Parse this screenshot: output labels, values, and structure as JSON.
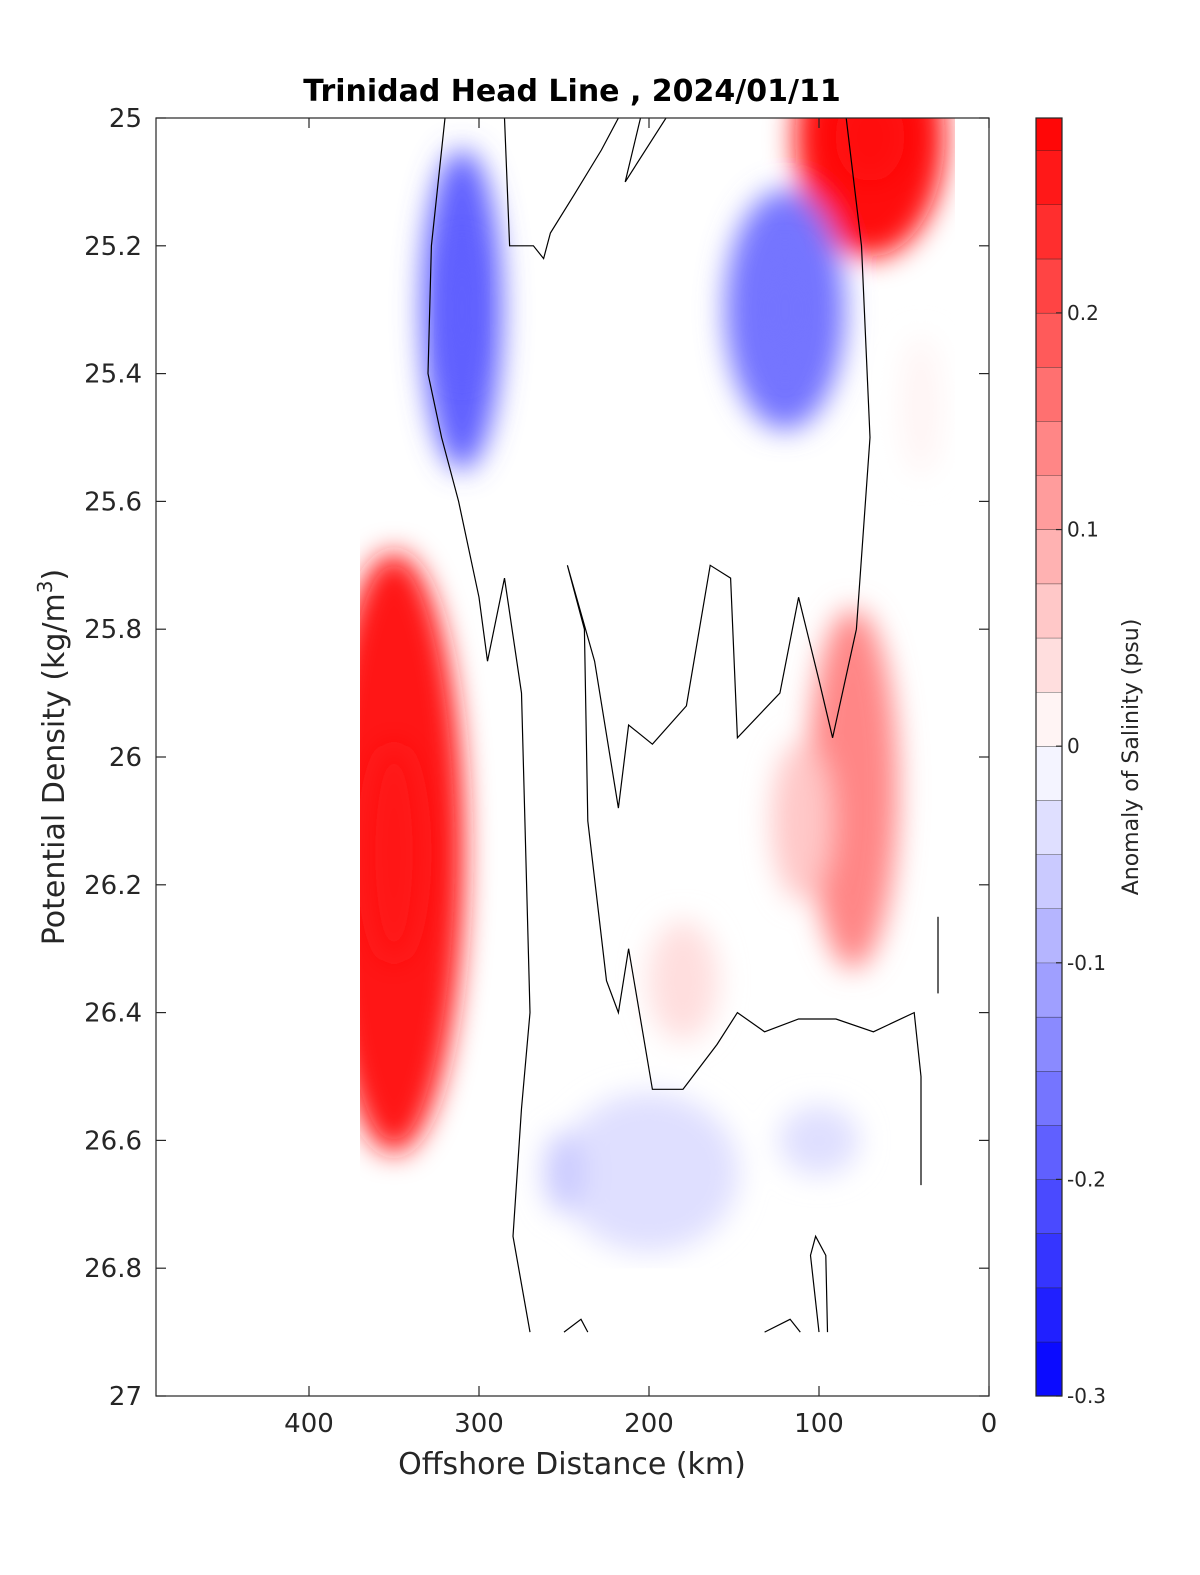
{
  "chart_data": {
    "type": "contour",
    "title": "Trinidad Head Line , 2024/01/11",
    "xlabel": "Offshore Distance (km)",
    "ylabel": "Potential Density (kg/m",
    "ylabel_superscript": "3",
    "ylabel_suffix": ")",
    "xlim": [
      490,
      0
    ],
    "ylim": [
      25,
      27
    ],
    "y_reversed": true,
    "x_reversed": true,
    "x_ticks": [
      400,
      300,
      200,
      100,
      0
    ],
    "x_tick_labels": [
      "400",
      "300",
      "200",
      "100",
      "0"
    ],
    "y_ticks": [
      25,
      25.2,
      25.4,
      25.6,
      25.8,
      26,
      26.2,
      26.4,
      26.6,
      26.8,
      27
    ],
    "y_tick_labels": [
      "25",
      "25.2",
      "25.4",
      "25.6",
      "25.8",
      "26",
      "26.2",
      "26.4",
      "26.6",
      "26.8",
      "27"
    ],
    "colorbar": {
      "label": "Anomaly of Salinity (psu)",
      "clim": [
        -0.3,
        0.29
      ],
      "levels": [
        -0.3,
        -0.275,
        -0.25,
        -0.225,
        -0.2,
        -0.175,
        -0.15,
        -0.125,
        -0.1,
        -0.075,
        -0.05,
        -0.025,
        0,
        0.025,
        0.05,
        0.075,
        0.1,
        0.125,
        0.15,
        0.175,
        0.2,
        0.225,
        0.25,
        0.275,
        0.29
      ],
      "ticks": [
        0.2,
        0.1,
        0,
        -0.1,
        -0.2,
        -0.3
      ],
      "tick_labels": [
        "0.2",
        "0.1",
        "0",
        "-0.1",
        "-0.2",
        "-0.3"
      ],
      "colormap": "blue-white-red",
      "color_negative": "#0000ff",
      "color_positive": "#ff0000"
    },
    "data_extent": {
      "x_range_km": [
        20,
        370
      ],
      "y_range_density": [
        25,
        26.9
      ]
    },
    "features": [
      {
        "name": "offshore positive core",
        "x_km": 350,
        "y": 26.15,
        "value": 0.25
      },
      {
        "name": "nearshore surface positive core",
        "x_km": 70,
        "y": 25.03,
        "value": 0.29
      },
      {
        "name": "offshore negative core",
        "x_km": 310,
        "y": 25.3,
        "value": -0.2
      },
      {
        "name": "midshelf negative core",
        "x_km": 120,
        "y": 25.3,
        "value": -0.175
      },
      {
        "name": "nearshore mid positive lobe",
        "x_km": 80,
        "y": 26.05,
        "value": 0.13
      },
      {
        "name": "inshore weak positive",
        "x_km": 40,
        "y": 25.45,
        "value": 0.0
      },
      {
        "name": "mid positive patch",
        "x_km": 180,
        "y": 26.35,
        "value": 0.04
      },
      {
        "name": "mid positive patch 2",
        "x_km": 110,
        "y": 26.1,
        "value": 0.06
      },
      {
        "name": "deep negative patch",
        "x_km": 200,
        "y": 26.65,
        "value": -0.04
      },
      {
        "name": "deep negative patch 2",
        "x_km": 250,
        "y": 26.65,
        "value": -0.06
      },
      {
        "name": "deep negative patch 3",
        "x_km": 100,
        "y": 26.6,
        "value": -0.035
      }
    ]
  }
}
